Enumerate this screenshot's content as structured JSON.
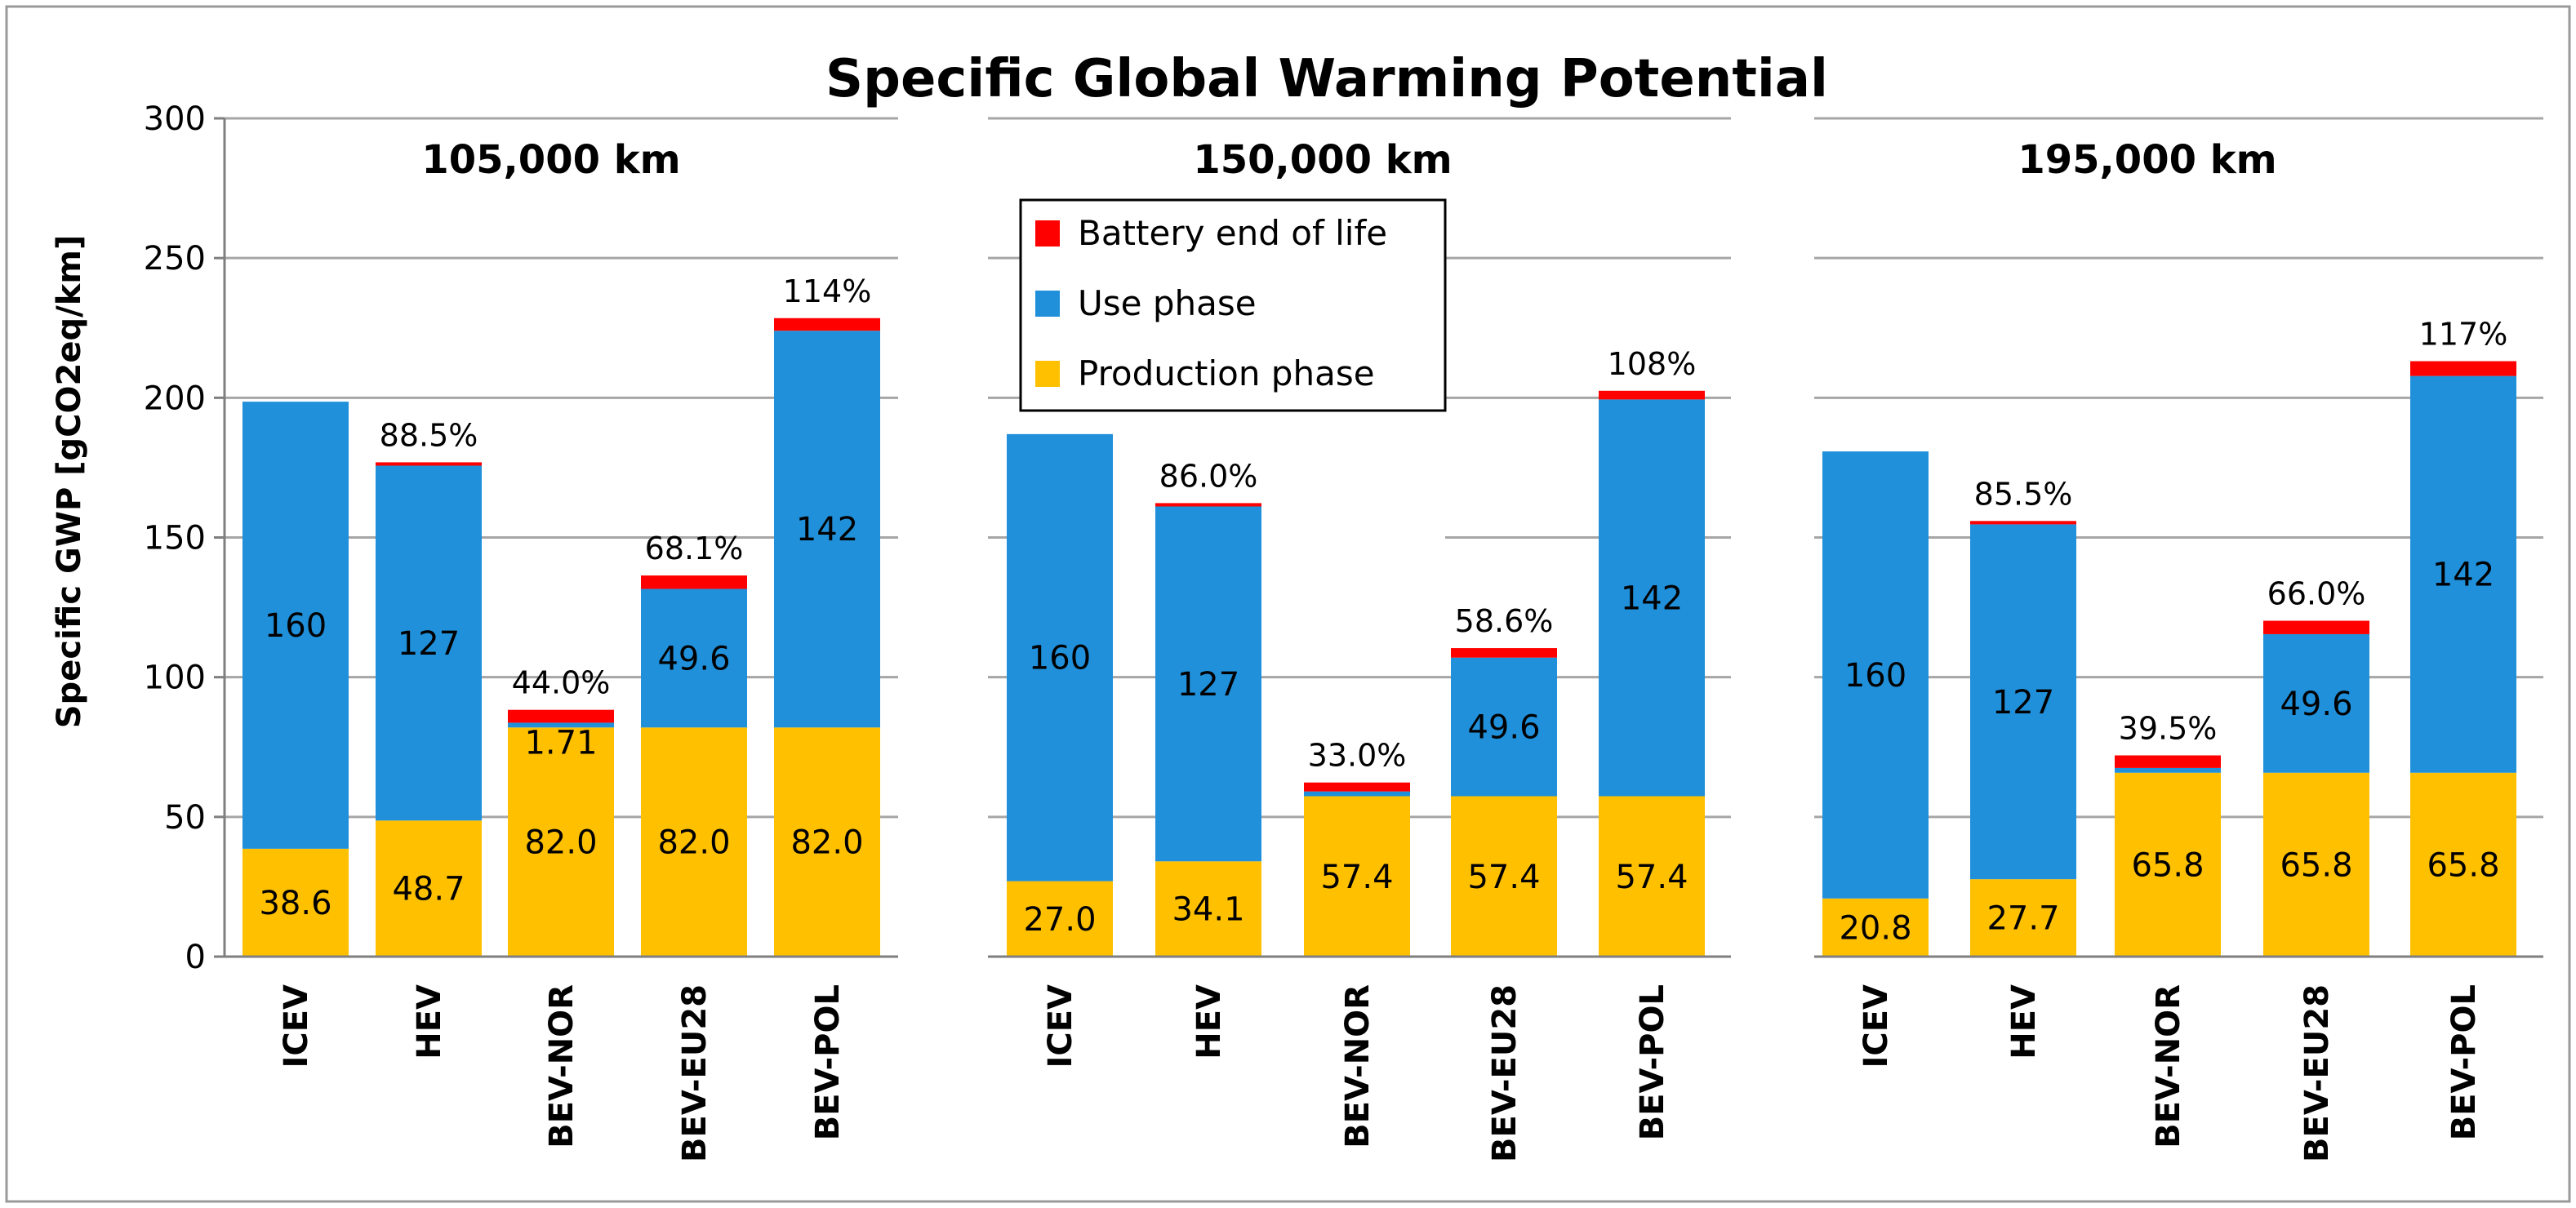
{
  "chart_data": {
    "type": "bar",
    "stacked": true,
    "title": "Specific Global Warming Potential",
    "ylabel": "Specific GWP  [gCO2eq/km]",
    "ylim": [
      0,
      300
    ],
    "yticks": [
      "0",
      "50",
      "100",
      "150",
      "200",
      "250",
      "300"
    ],
    "grid": true,
    "legend_placement": "top-center",
    "legend": [
      {
        "name": "Battery end of life",
        "color": "#FF0000"
      },
      {
        "name": "Use phase",
        "color": "#2090DA"
      },
      {
        "name": "Production phase",
        "color": "#FFC000"
      }
    ],
    "categories": [
      "ICEV",
      "HEV",
      "BEV-NOR",
      "BEV-EU28",
      "BEV-POL"
    ],
    "panels": [
      {
        "title": "105,000 km",
        "series": [
          {
            "name": "Production phase",
            "values": [
              38.6,
              48.7,
              82.0,
              82.0,
              82.0
            ],
            "labels": [
              "38.6",
              "48.7",
              "82.0",
              "82.0",
              "82.0"
            ]
          },
          {
            "name": "Use phase",
            "values": [
              160,
              127,
              1.71,
              49.6,
              142
            ],
            "labels": [
              "160",
              "127",
              "1.71",
              "49.6",
              "142"
            ]
          },
          {
            "name": "Battery end of life",
            "values": [
              0,
              1.2,
              4.6,
              4.8,
              4.5
            ],
            "labels": [
              "",
              "",
              "",
              "",
              ""
            ]
          }
        ],
        "pct_labels": [
          "",
          "88.5%",
          "44.0%",
          "68.1%",
          "114%"
        ]
      },
      {
        "title": "150,000 km",
        "series": [
          {
            "name": "Production phase",
            "values": [
              27.0,
              34.1,
              57.4,
              57.4,
              57.4
            ],
            "labels": [
              "27.0",
              "34.1",
              "57.4",
              "57.4",
              "57.4"
            ]
          },
          {
            "name": "Use phase",
            "values": [
              160,
              127,
              1.71,
              49.6,
              142
            ],
            "labels": [
              "160",
              "127",
              "",
              "49.6",
              "142"
            ]
          },
          {
            "name": "Battery end of life",
            "values": [
              0,
              1.2,
              3.2,
              3.4,
              3.1
            ],
            "labels": [
              "",
              "",
              "",
              "",
              ""
            ]
          }
        ],
        "pct_labels": [
          "",
          "86.0%",
          "33.0%",
          "58.6%",
          "108%"
        ]
      },
      {
        "title": "195,000 km",
        "series": [
          {
            "name": "Production phase",
            "values": [
              20.8,
              27.7,
              65.8,
              65.8,
              65.8
            ],
            "labels": [
              "20.8",
              "27.7",
              "65.8",
              "65.8",
              "65.8"
            ]
          },
          {
            "name": "Use phase",
            "values": [
              160,
              127,
              1.71,
              49.6,
              142
            ],
            "labels": [
              "160",
              "127",
              "",
              "49.6",
              "142"
            ]
          },
          {
            "name": "Battery end of life",
            "values": [
              0,
              1.2,
              4.5,
              4.8,
              5.3
            ],
            "labels": [
              "",
              "",
              "",
              "",
              ""
            ]
          }
        ],
        "pct_labels": [
          "",
          "85.5%",
          "39.5%",
          "66.0%",
          "117%"
        ]
      }
    ]
  }
}
